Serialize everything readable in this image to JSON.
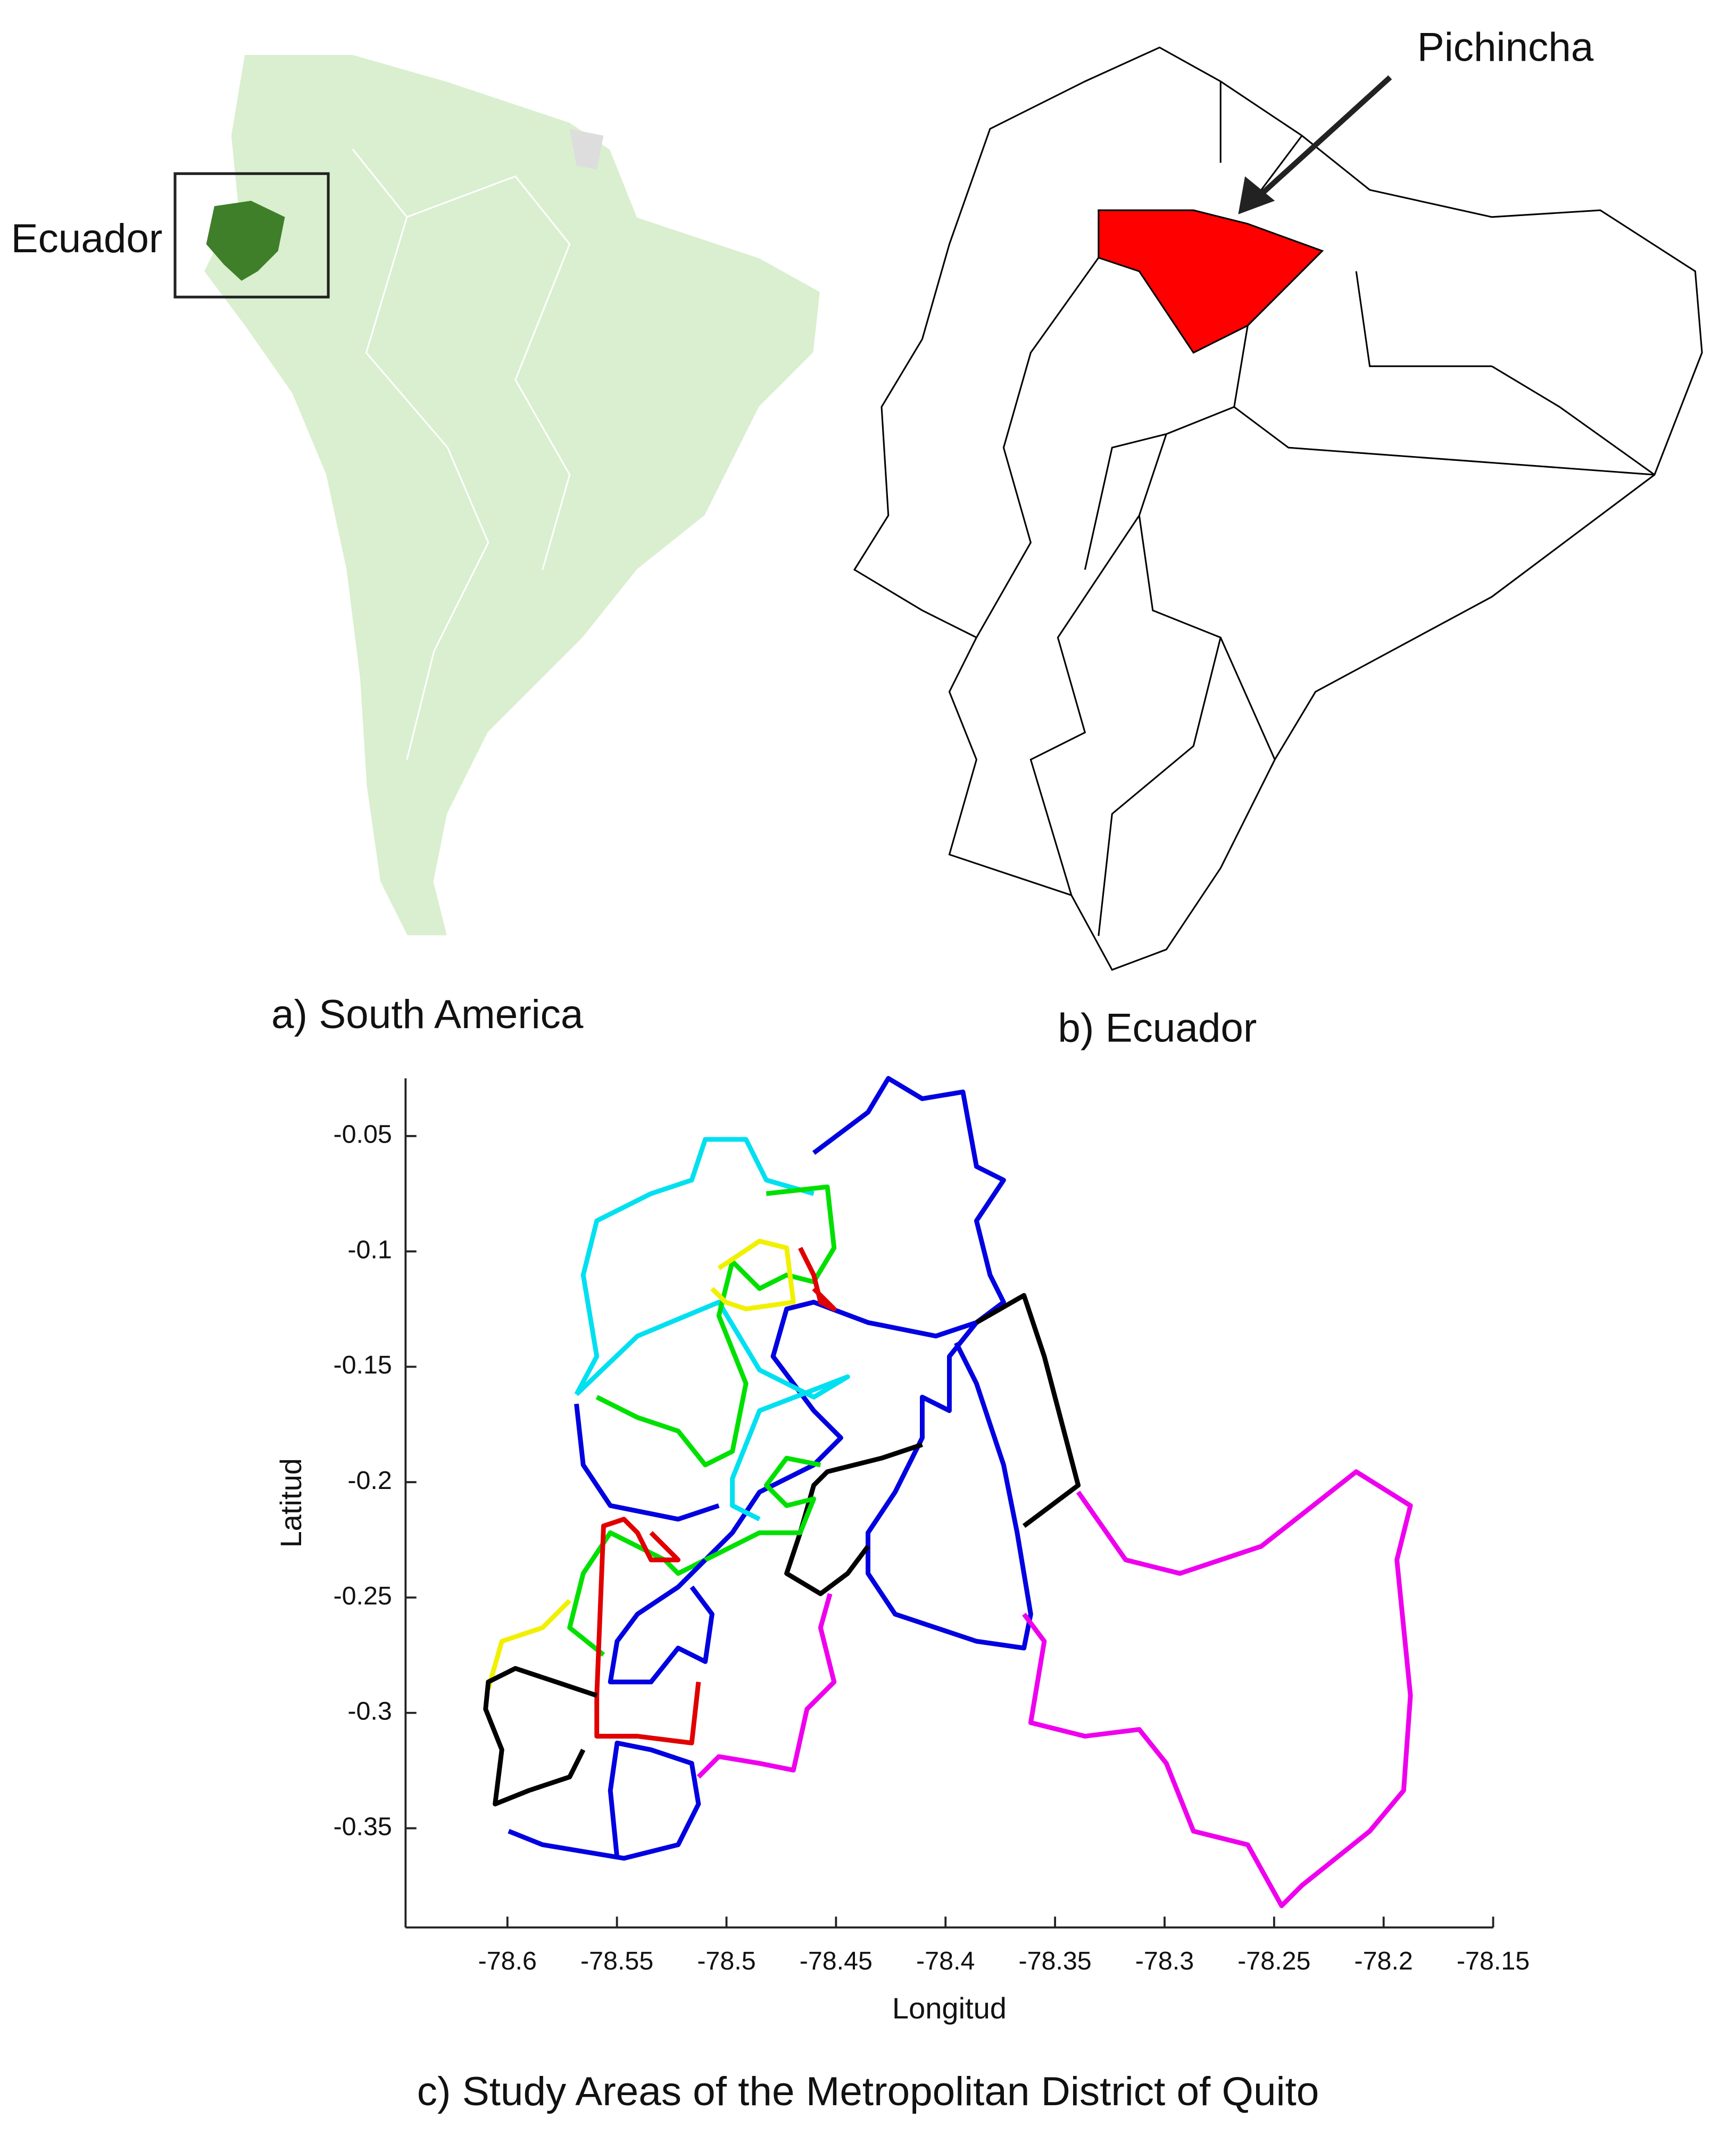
{
  "panel_a": {
    "label": "Ecuador",
    "caption": "a) South America"
  },
  "panel_b": {
    "label": "Pichincha",
    "caption": "b) Ecuador"
  },
  "chart_data": {
    "type": "map",
    "title": "c) Study Areas of the Metropolitan District of Quito",
    "xlabel": "Longitud",
    "ylabel": "Latitud",
    "xlim": [
      -78.6465,
      -78.15
    ],
    "ylim": [
      -0.393,
      -0.025
    ],
    "xticks": [
      -78.6,
      -78.55,
      -78.5,
      -78.45,
      -78.4,
      -78.35,
      -78.3,
      -78.25,
      -78.2,
      -78.15
    ],
    "yticks": [
      -0.05,
      -0.1,
      -0.15,
      -0.2,
      -0.25,
      -0.3,
      -0.35
    ]
  }
}
